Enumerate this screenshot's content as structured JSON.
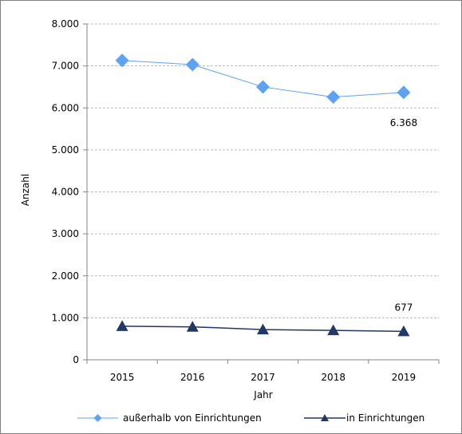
{
  "chart_data": {
    "type": "line",
    "title": "",
    "xlabel": "Jahr",
    "ylabel": "Anzahl",
    "categories": [
      "2015",
      "2016",
      "2017",
      "2018",
      "2019"
    ],
    "ylim": [
      0,
      8000
    ],
    "y_ticks": [
      0,
      1000,
      2000,
      3000,
      4000,
      5000,
      6000,
      7000,
      8000
    ],
    "y_tick_labels": [
      "0",
      "1.000",
      "2.000",
      "3.000",
      "4.000",
      "5.000",
      "6.000",
      "7.000",
      "8.000"
    ],
    "grid": "horizontal dashed",
    "legend_position": "bottom",
    "series": [
      {
        "name": "außerhalb von Einrichtungen",
        "values": [
          7130,
          7030,
          6500,
          6260,
          6368
        ],
        "color": "#5ea3f2",
        "marker": "diamond",
        "labels": [
          "",
          "",
          "",
          "",
          "6.368"
        ]
      },
      {
        "name": "in Einrichtungen",
        "values": [
          800,
          785,
          720,
          700,
          677
        ],
        "color": "#1f3864",
        "marker": "triangle",
        "labels": [
          "",
          "",
          "",
          "",
          "677"
        ]
      }
    ]
  }
}
